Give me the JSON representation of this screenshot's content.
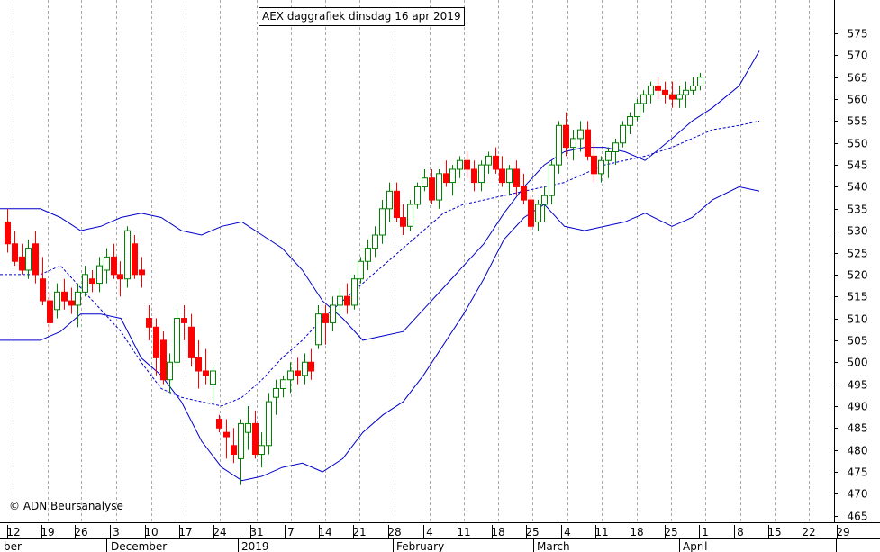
{
  "title": "AEX daggrafiek dinsdag 16 apr 2019",
  "copyright": "© ADN Beursanalyse",
  "colors": {
    "up": "#008000",
    "down": "#ff0000",
    "band": "#0000cc",
    "grid": "#aaaaaa"
  },
  "chart_data": {
    "type": "candlestick",
    "ylim": [
      460,
      580
    ],
    "yticks": [
      465,
      470,
      475,
      480,
      485,
      490,
      495,
      500,
      505,
      510,
      515,
      520,
      525,
      530,
      535,
      540,
      545,
      550,
      555,
      560,
      565,
      570,
      575
    ],
    "day_labels": [
      "12",
      "19",
      "26",
      "3",
      "10",
      "17",
      "24",
      "31",
      "7",
      "14",
      "21",
      "28",
      "4",
      "11",
      "18",
      "25",
      "4",
      "11",
      "18",
      "25",
      "1",
      "8",
      "15",
      "22",
      "29"
    ],
    "month_labels": [
      "ber",
      "December",
      "2019",
      "February",
      "March",
      "April"
    ],
    "candles": [
      [
        1,
        532,
        535,
        525,
        527
      ],
      [
        2,
        527,
        530,
        522,
        523
      ],
      [
        3,
        524,
        527,
        520,
        521
      ],
      [
        4,
        521,
        528,
        519,
        526
      ],
      [
        5,
        527,
        530,
        518,
        520
      ],
      [
        6,
        519,
        524,
        513,
        514
      ],
      [
        7,
        514,
        516,
        507,
        509
      ],
      [
        8,
        512,
        518,
        510,
        516
      ],
      [
        9,
        516,
        519,
        512,
        514
      ],
      [
        10,
        514,
        517,
        511,
        513
      ],
      [
        11,
        513,
        518,
        508,
        516
      ],
      [
        12,
        516,
        522,
        515,
        520
      ],
      [
        13,
        519,
        521,
        516,
        518
      ],
      [
        14,
        518,
        524,
        516,
        522
      ],
      [
        15,
        521,
        526,
        518,
        524
      ],
      [
        16,
        524,
        527,
        519,
        520
      ],
      [
        17,
        520,
        523,
        515,
        519
      ],
      [
        18,
        519,
        531,
        517,
        530
      ],
      [
        19,
        527,
        529,
        519,
        520
      ],
      [
        20,
        521,
        524,
        517,
        520
      ],
      [
        21,
        510,
        513,
        505,
        508
      ],
      [
        22,
        508,
        510,
        497,
        501
      ],
      [
        23,
        505,
        507,
        495,
        496
      ],
      [
        24,
        496,
        502,
        493,
        500
      ],
      [
        25,
        500,
        512,
        499,
        510
      ],
      [
        26,
        510,
        513,
        505,
        509
      ],
      [
        27,
        508,
        511,
        499,
        501
      ],
      [
        28,
        501,
        505,
        494,
        498
      ],
      [
        29,
        498,
        503,
        495,
        497
      ],
      [
        30,
        495,
        499,
        491,
        498
      ],
      [
        31,
        487,
        488,
        484,
        485
      ],
      [
        32,
        484,
        487,
        478,
        483
      ],
      [
        33,
        481,
        485,
        477,
        479
      ],
      [
        34,
        478,
        487,
        472,
        486
      ],
      [
        35,
        484,
        490,
        480,
        486
      ],
      [
        36,
        486,
        489,
        478,
        479
      ],
      [
        37,
        479,
        484,
        476,
        481
      ],
      [
        38,
        481,
        493,
        479,
        491
      ],
      [
        39,
        492,
        496,
        488,
        494
      ],
      [
        40,
        494,
        497,
        492,
        496
      ],
      [
        41,
        496,
        500,
        493,
        498
      ],
      [
        42,
        498,
        501,
        495,
        497
      ],
      [
        43,
        497,
        502,
        495,
        500
      ],
      [
        44,
        500,
        503,
        496,
        498
      ],
      [
        45,
        504,
        513,
        503,
        511
      ],
      [
        46,
        511,
        513,
        504,
        509
      ],
      [
        47,
        509,
        515,
        507,
        513
      ],
      [
        48,
        513,
        517,
        511,
        515
      ],
      [
        49,
        515,
        518,
        511,
        513
      ],
      [
        50,
        513,
        520,
        512,
        519
      ],
      [
        51,
        519,
        524,
        518,
        523
      ],
      [
        52,
        523,
        528,
        521,
        526
      ],
      [
        53,
        526,
        531,
        524,
        529
      ],
      [
        54,
        529,
        537,
        527,
        535
      ],
      [
        55,
        535,
        541,
        532,
        539
      ],
      [
        56,
        539,
        541,
        532,
        533
      ],
      [
        57,
        533,
        536,
        529,
        531
      ],
      [
        58,
        531,
        537,
        530,
        536
      ],
      [
        59,
        536,
        541,
        535,
        540
      ],
      [
        60,
        540,
        544,
        539,
        542
      ],
      [
        61,
        542,
        544,
        536,
        537
      ],
      [
        62,
        537,
        544,
        535,
        543
      ],
      [
        63,
        543,
        546,
        540,
        541
      ],
      [
        64,
        541,
        545,
        538,
        544
      ],
      [
        65,
        544,
        547,
        542,
        546
      ],
      [
        66,
        546,
        548,
        542,
        544
      ],
      [
        67,
        544,
        546,
        539,
        541
      ],
      [
        68,
        541,
        546,
        539,
        545
      ],
      [
        69,
        545,
        548,
        543,
        547
      ],
      [
        70,
        547,
        549,
        543,
        544
      ],
      [
        71,
        544,
        547,
        540,
        541
      ],
      [
        72,
        541,
        545,
        538,
        544
      ],
      [
        73,
        544,
        546,
        538,
        540
      ],
      [
        74,
        540,
        543,
        536,
        537
      ],
      [
        75,
        537,
        538,
        530,
        531
      ],
      [
        76,
        532,
        537,
        530,
        536
      ],
      [
        77,
        536,
        540,
        532,
        538
      ],
      [
        78,
        538,
        546,
        536,
        545
      ],
      [
        79,
        545,
        555,
        543,
        554
      ],
      [
        80,
        554,
        557,
        547,
        549
      ],
      [
        81,
        549,
        553,
        546,
        551
      ],
      [
        82,
        551,
        555,
        548,
        553
      ],
      [
        83,
        553,
        555,
        546,
        547
      ],
      [
        84,
        547,
        550,
        541,
        543
      ],
      [
        85,
        543,
        547,
        541,
        546
      ],
      [
        86,
        546,
        549,
        542,
        548
      ],
      [
        87,
        548,
        551,
        545,
        550
      ],
      [
        88,
        550,
        555,
        549,
        554
      ],
      [
        89,
        554,
        557,
        552,
        556
      ],
      [
        90,
        556,
        560,
        555,
        559
      ],
      [
        91,
        559,
        562,
        557,
        561
      ],
      [
        92,
        561,
        564,
        559,
        563
      ],
      [
        93,
        563,
        565,
        560,
        562
      ],
      [
        94,
        562,
        564,
        559,
        561
      ],
      [
        95,
        561,
        564,
        558,
        560
      ],
      [
        96,
        560,
        563,
        558,
        561
      ],
      [
        97,
        561,
        564,
        558,
        562
      ],
      [
        98,
        562,
        565,
        561,
        563
      ],
      [
        99,
        563,
        566,
        562,
        565
      ]
    ],
    "bollinger_middle": [
      [
        0,
        520
      ],
      [
        12,
        520
      ],
      [
        18,
        522
      ],
      [
        24,
        517
      ],
      [
        30,
        512
      ],
      [
        36,
        507
      ],
      [
        42,
        500
      ],
      [
        48,
        494
      ],
      [
        54,
        492
      ],
      [
        60,
        491
      ],
      [
        66,
        490
      ],
      [
        72,
        492
      ],
      [
        78,
        496
      ],
      [
        84,
        501
      ],
      [
        90,
        505
      ],
      [
        96,
        510
      ],
      [
        102,
        514
      ],
      [
        108,
        518
      ],
      [
        114,
        522
      ],
      [
        120,
        526
      ],
      [
        126,
        530
      ],
      [
        132,
        534
      ],
      [
        138,
        536
      ],
      [
        144,
        537
      ],
      [
        150,
        538
      ],
      [
        156,
        539
      ],
      [
        162,
        540
      ],
      [
        168,
        541
      ],
      [
        174,
        543
      ],
      [
        180,
        545
      ],
      [
        186,
        546
      ],
      [
        192,
        547
      ],
      [
        200,
        549
      ],
      [
        206,
        551
      ],
      [
        212,
        553
      ],
      [
        220,
        554
      ],
      [
        226,
        555
      ]
    ],
    "bollinger_upper": [
      [
        0,
        535
      ],
      [
        12,
        535
      ],
      [
        18,
        533
      ],
      [
        24,
        530
      ],
      [
        30,
        531
      ],
      [
        36,
        533
      ],
      [
        42,
        534
      ],
      [
        48,
        533
      ],
      [
        54,
        530
      ],
      [
        60,
        529
      ],
      [
        66,
        531
      ],
      [
        72,
        532
      ],
      [
        78,
        529
      ],
      [
        84,
        526
      ],
      [
        90,
        521
      ],
      [
        96,
        514
      ],
      [
        102,
        510
      ],
      [
        108,
        505
      ],
      [
        114,
        506
      ],
      [
        120,
        507
      ],
      [
        126,
        512
      ],
      [
        132,
        517
      ],
      [
        138,
        522
      ],
      [
        144,
        527
      ],
      [
        150,
        534
      ],
      [
        156,
        540
      ],
      [
        162,
        545
      ],
      [
        168,
        548
      ],
      [
        174,
        549
      ],
      [
        180,
        549
      ],
      [
        186,
        548
      ],
      [
        192,
        546
      ],
      [
        200,
        551
      ],
      [
        206,
        555
      ],
      [
        212,
        558
      ],
      [
        220,
        563
      ],
      [
        226,
        571
      ]
    ],
    "bollinger_lower": [
      [
        0,
        505
      ],
      [
        12,
        505
      ],
      [
        18,
        507
      ],
      [
        24,
        511
      ],
      [
        30,
        511
      ],
      [
        36,
        510
      ],
      [
        42,
        501
      ],
      [
        48,
        497
      ],
      [
        54,
        491
      ],
      [
        60,
        482
      ],
      [
        66,
        476
      ],
      [
        72,
        473
      ],
      [
        78,
        474
      ],
      [
        84,
        476
      ],
      [
        90,
        477
      ],
      [
        96,
        475
      ],
      [
        102,
        478
      ],
      [
        108,
        484
      ],
      [
        114,
        488
      ],
      [
        120,
        491
      ],
      [
        126,
        497
      ],
      [
        132,
        504
      ],
      [
        138,
        511
      ],
      [
        144,
        519
      ],
      [
        150,
        528
      ],
      [
        156,
        533
      ],
      [
        162,
        536
      ],
      [
        168,
        531
      ],
      [
        174,
        530
      ],
      [
        180,
        531
      ],
      [
        186,
        532
      ],
      [
        192,
        534
      ],
      [
        200,
        531
      ],
      [
        206,
        533
      ],
      [
        212,
        537
      ],
      [
        220,
        540
      ],
      [
        226,
        539
      ]
    ]
  }
}
